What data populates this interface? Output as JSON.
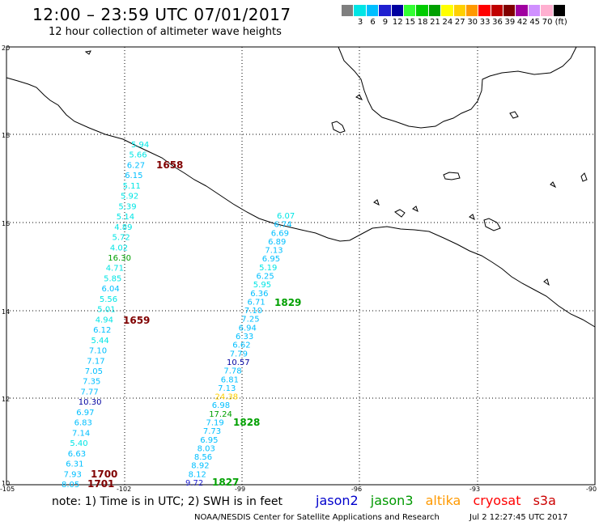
{
  "header": {
    "title": "12:00 – 23:59 UTC 07/01/2017",
    "subtitle": "12 hour collection of altimeter wave heights"
  },
  "legend": {
    "unit": "(ft)",
    "bins": [
      {
        "label": "",
        "color": "#7f7f7f"
      },
      {
        "label": "3",
        "color": "#00e5e5"
      },
      {
        "label": "6",
        "color": "#00bfff"
      },
      {
        "label": "9",
        "color": "#2020d0"
      },
      {
        "label": "12",
        "color": "#0000a0"
      },
      {
        "label": "15",
        "color": "#33ff33"
      },
      {
        "label": "18",
        "color": "#00cc00"
      },
      {
        "label": "21",
        "color": "#00a000"
      },
      {
        "label": "24",
        "color": "#ffff00"
      },
      {
        "label": "27",
        "color": "#ffd000"
      },
      {
        "label": "30",
        "color": "#ff9900"
      },
      {
        "label": "33",
        "color": "#ff0000"
      },
      {
        "label": "36",
        "color": "#c00000"
      },
      {
        "label": "39",
        "color": "#800000"
      },
      {
        "label": "42",
        "color": "#a000a0"
      },
      {
        "label": "45",
        "color": "#d090ff"
      },
      {
        "label": "70",
        "color": "#ffb0d0"
      },
      {
        "label": "",
        "color": "#000000"
      }
    ]
  },
  "axes": {
    "lon_labels": [
      "-105",
      "-102",
      "-99",
      "-96",
      "-93",
      "-90"
    ],
    "lat_labels": [
      "20",
      "18",
      "16",
      "14",
      "12",
      "10"
    ]
  },
  "tracks": {
    "west": {
      "values": [
        "5.94",
        "5.66",
        "6.27",
        "6.15",
        "5.11",
        "5.92",
        "5.39",
        "5.14",
        "4.89",
        "5.72",
        "4.02",
        "16.30",
        "4.71",
        "5.85",
        "6.04",
        "5.56",
        "5.01",
        "4.94",
        "6.12",
        "5.44",
        "7.10",
        "7.17",
        "7.05",
        "7.35",
        "7.77",
        "10.30",
        "6.97",
        "6.83",
        "7.14",
        "5.40",
        "6.63",
        "6.31",
        "7.93",
        "8.05"
      ],
      "colors": [
        "#00e5e5",
        "#00e5e5",
        "#00bfff",
        "#00bfff",
        "#00e5e5",
        "#00e5e5",
        "#00e5e5",
        "#00e5e5",
        "#00e5e5",
        "#00e5e5",
        "#00e5e5",
        "#00a000",
        "#00e5e5",
        "#00e5e5",
        "#00bfff",
        "#00e5e5",
        "#00e5e5",
        "#00e5e5",
        "#00bfff",
        "#00e5e5",
        "#00bfff",
        "#00bfff",
        "#00bfff",
        "#00bfff",
        "#00bfff",
        "#0000a0",
        "#00bfff",
        "#00bfff",
        "#00bfff",
        "#00e5e5",
        "#00bfff",
        "#00bfff",
        "#00bfff",
        "#00bfff"
      ]
    },
    "east": {
      "values": [
        "6.07",
        "6.74",
        "6.69",
        "6.89",
        "7.13",
        "6.95",
        "5.19",
        "6.25",
        "5.95",
        "6.36",
        "6.71",
        "7.10",
        "7.25",
        "6.94",
        "6.33",
        "6.62",
        "7.79",
        "10.57",
        "7.78",
        "6.81",
        "7.13",
        "24.38",
        "6.98",
        "17.24",
        "7.19",
        "7.73",
        "6.95",
        "8.03",
        "8.56",
        "8.92",
        "8.12",
        "9.72"
      ],
      "colors": [
        "#00e5e5",
        "#00bfff",
        "#00bfff",
        "#00bfff",
        "#00bfff",
        "#00bfff",
        "#00e5e5",
        "#00bfff",
        "#00e5e5",
        "#00bfff",
        "#00bfff",
        "#00bfff",
        "#00bfff",
        "#00bfff",
        "#00bfff",
        "#00bfff",
        "#00bfff",
        "#0000a0",
        "#00bfff",
        "#00bfff",
        "#00bfff",
        "#ffd000",
        "#00bfff",
        "#00a000",
        "#00bfff",
        "#00bfff",
        "#00bfff",
        "#00bfff",
        "#00bfff",
        "#00bfff",
        "#00bfff",
        "#2020d0"
      ]
    }
  },
  "time_labels": [
    {
      "text": "1658",
      "color": "#800000"
    },
    {
      "text": "1659",
      "color": "#800000"
    },
    {
      "text": "1700",
      "color": "#800000"
    },
    {
      "text": "1701",
      "color": "#800000"
    },
    {
      "text": "1829",
      "color": "#00a000"
    },
    {
      "text": "1828",
      "color": "#00a000"
    },
    {
      "text": "1827",
      "color": "#00a000"
    }
  ],
  "footer": {
    "note": "note: 1) Time is in UTC; 2) SWH is in feet",
    "satellites": [
      {
        "name": "jason2",
        "color": "#0000cc"
      },
      {
        "name": "jason3",
        "color": "#009900"
      },
      {
        "name": "altika",
        "color": "#ff9900"
      },
      {
        "name": "cryosat",
        "color": "#ff0000"
      },
      {
        "name": "s3a",
        "color": "#cc0000"
      }
    ],
    "credit": "NOAA/NESDIS Center for Satellite Applications and Research",
    "timestamp": "Jul  2 12:27:45 UTC 2017"
  }
}
